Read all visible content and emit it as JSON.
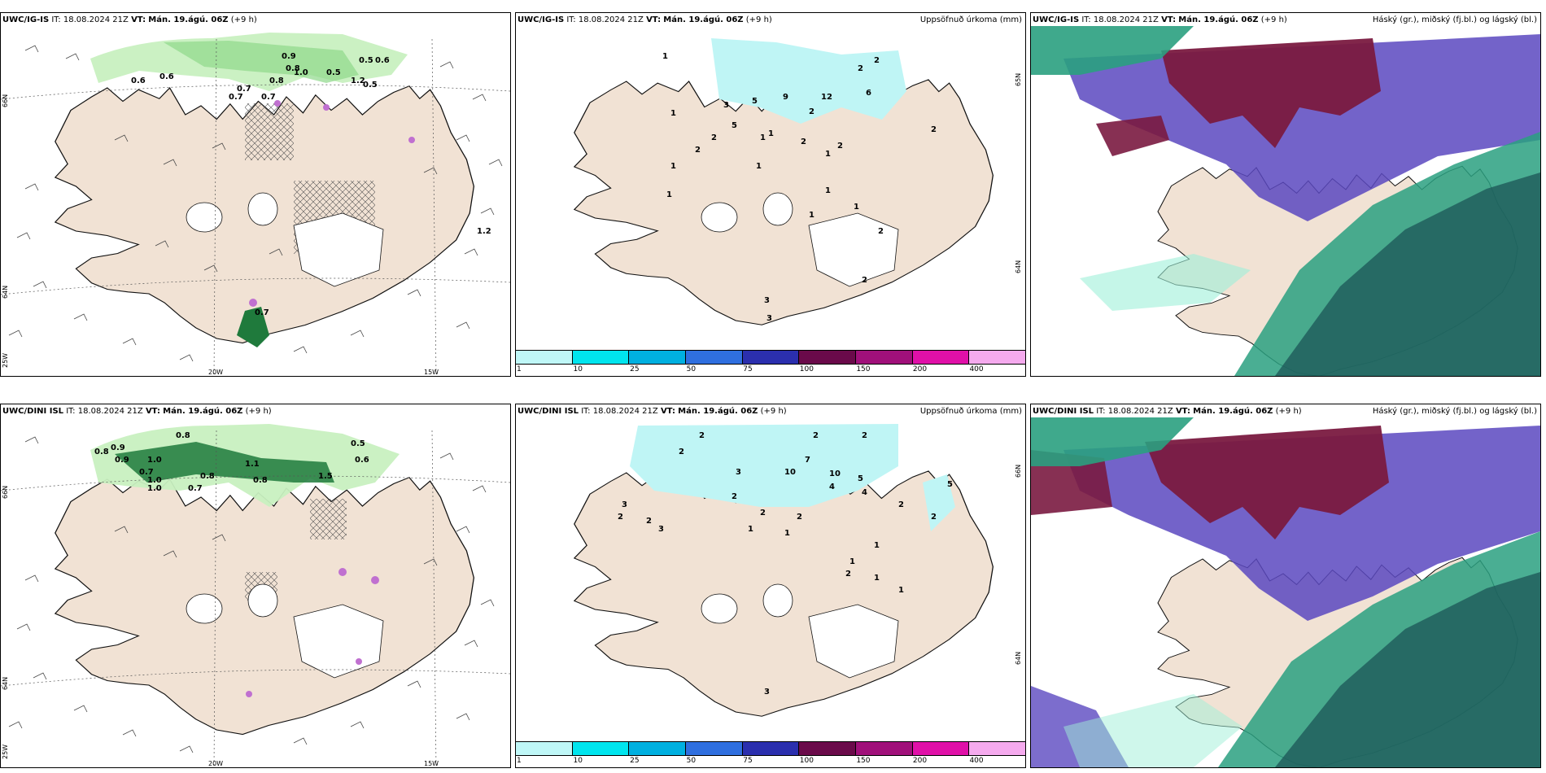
{
  "colors": {
    "land": "#f1e2d4",
    "sea": "#ffffff",
    "precip_light": "#bff5f5",
    "green_light": "#c8f0c0",
    "green_dark": "#1f7a3c",
    "purple": "#5b48c0",
    "maroon": "#7a1a40",
    "teal": "#2aa080",
    "teal_dark": "#1e5a5a"
  },
  "colorbar": {
    "colors": [
      "#bff7f7",
      "#00e5ee",
      "#00b0e0",
      "#2f6fdf",
      "#2b2fae",
      "#6a0a4a",
      "#a0107a",
      "#e010a8",
      "#f5aaee"
    ],
    "labels": [
      "1",
      "10",
      "25",
      "50",
      "75",
      "100",
      "150",
      "200",
      "400"
    ]
  },
  "panels": [
    {
      "model": "UWC/IG-IS",
      "it": "IT: 18.08.2024 21Z",
      "vt_label": "VT:",
      "vt": "Mán. 19.ágú. 06Z",
      "lead": "(+9 h)",
      "right": "",
      "grid": {
        "lat1": "66N",
        "lat2": "64N",
        "lat3": "25W",
        "lon1": "20W",
        "lon2": "15W"
      },
      "values": [
        "0.6",
        "0.6",
        "0.7",
        "0.8",
        "0.9",
        "1.0",
        "0.5",
        "0.5",
        "0.6",
        "0.7",
        "0.8",
        "0.7",
        "1.2",
        "0.5",
        "1.2",
        "0.7"
      ]
    },
    {
      "model": "UWC/IG-IS",
      "it": "IT: 18.08.2024 21Z",
      "vt_label": "VT:",
      "vt": "Mán. 19.ágú. 06Z",
      "lead": "(+9 h)",
      "right": "Uppsöfnuð úrkoma (mm)",
      "grid": {
        "lat1": "65N",
        "lat2": "64N"
      },
      "values": [
        "1",
        "1",
        "5",
        "3",
        "5",
        "9",
        "12",
        "2",
        "6",
        "2",
        "1",
        "1",
        "2",
        "1",
        "2",
        "1",
        "2",
        "2",
        "1",
        "1",
        "1",
        "2",
        "2",
        "1",
        "1",
        "2",
        "3",
        "3",
        "2"
      ]
    },
    {
      "model": "UWC/IG-IS",
      "it": "IT: 18.08.2024 21Z",
      "vt_label": "VT:",
      "vt": "Mán. 19.ágú. 06Z",
      "lead": "(+9 h)",
      "right": "Háský (gr.), miðský (fj.bl.) og lágský (bl.)"
    },
    {
      "model": "UWC/DINI ISL",
      "it": "IT: 18.08.2024 21Z",
      "vt_label": "VT:",
      "vt": "Mán. 19.ágú. 06Z",
      "lead": "(+9 h)",
      "right": "",
      "grid": {
        "lat1": "66N",
        "lat2": "64N",
        "lat3": "25W",
        "lon1": "20W",
        "lon2": "15W"
      },
      "values": [
        "0.8",
        "0.9",
        "1.0",
        "0.7",
        "0.8",
        "1.0",
        "0.7",
        "0.8",
        "0.5",
        "0.6",
        "0.9",
        "1.1",
        "0.8",
        "1.0",
        "1.5"
      ]
    },
    {
      "model": "UWC/DINI ISL",
      "it": "IT: 18.08.2024 21Z",
      "vt_label": "VT:",
      "vt": "Mán. 19.ágú. 06Z",
      "lead": "(+9 h)",
      "right": "Uppsöfnuð úrkoma (mm)",
      "grid": {
        "lat1": "66N",
        "lat2": "64N"
      },
      "values": [
        "2",
        "2",
        "2",
        "2",
        "3",
        "10",
        "7",
        "10",
        "5",
        "4",
        "3",
        "2",
        "2",
        "3",
        "2",
        "2",
        "1",
        "1",
        "2",
        "1",
        "2",
        "1",
        "2",
        "2",
        "1",
        "1",
        "3",
        "4",
        "5"
      ]
    },
    {
      "model": "UWC/DINI ISL",
      "it": "IT: 18.08.2024 21Z",
      "vt_label": "VT:",
      "vt": "Mán. 19.ágú. 06Z",
      "lead": "(+9 h)",
      "right": "Háský (gr.), miðský (fj.bl.) og lágský (bl.)"
    }
  ]
}
